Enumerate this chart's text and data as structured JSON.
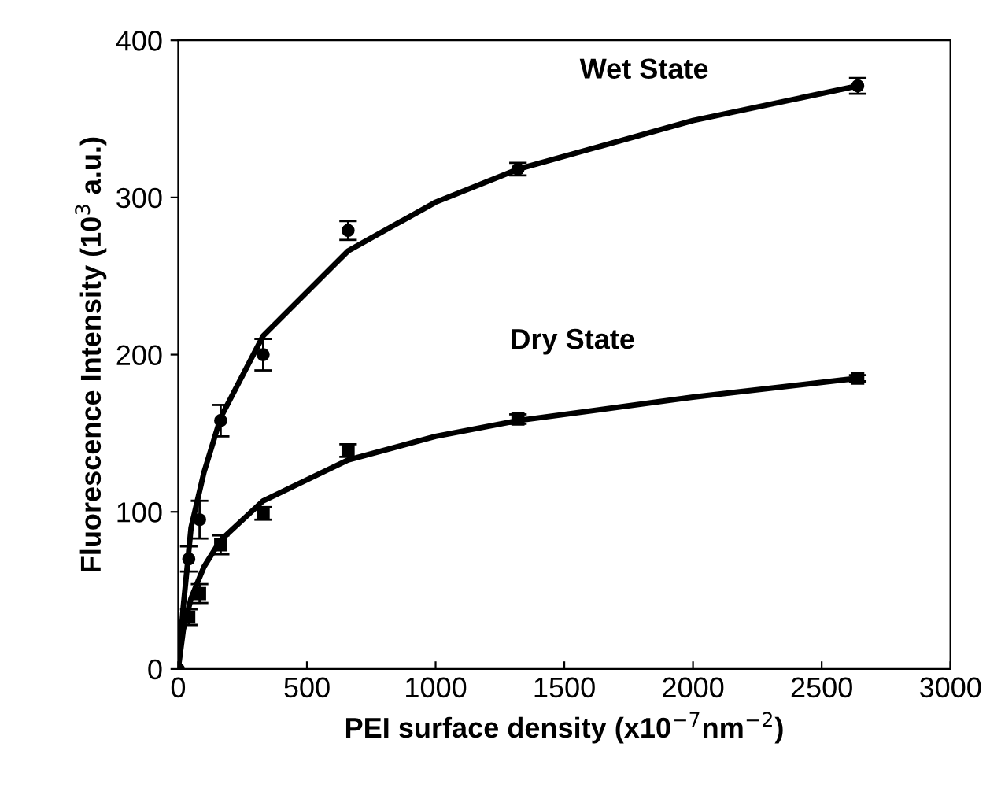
{
  "chart_data": {
    "type": "scatter",
    "xlabel": "PEI surface density (x10$^{−7}$nm$^{−2}$)",
    "ylabel": "Fluorescence Intensity (10$^{3}$ a.u.)",
    "xlim": [
      0,
      3000
    ],
    "ylim": [
      0,
      400
    ],
    "xticks": [
      0,
      500,
      1000,
      1500,
      2000,
      2500,
      3000
    ],
    "yticks": [
      0,
      100,
      200,
      300,
      400
    ],
    "grid": false,
    "series": [
      {
        "marker": "circle",
        "color": "#000000",
        "x": [
          0,
          41,
          83,
          165,
          330,
          660,
          1320,
          2640
        ],
        "values": [
          0,
          70,
          95,
          158,
          200,
          279,
          318,
          371
        ],
        "errors": [
          null,
          8,
          12,
          10,
          10,
          6,
          4,
          5
        ]
      },
      {
        "marker": "square",
        "color": "#000000",
        "x": [
          41,
          83,
          165,
          330,
          660,
          1320,
          2640
        ],
        "values": [
          33,
          48,
          79,
          99,
          139,
          159,
          185
        ],
        "errors": [
          5,
          6,
          6,
          4,
          4,
          3,
          2
        ]
      },
      {
        "type": "line",
        "marker": "none",
        "line_style": "solid",
        "color": "#000000",
        "x": [
          0,
          20,
          50,
          100,
          165,
          330,
          660,
          1000,
          1320,
          2000,
          2640
        ],
        "values": [
          0,
          40,
          90,
          125,
          160,
          212,
          266,
          297,
          318,
          349,
          371
        ]
      },
      {
        "type": "line",
        "marker": "none",
        "line_style": "solid",
        "color": "#000000",
        "x": [
          0,
          20,
          50,
          100,
          165,
          330,
          660,
          1000,
          1320,
          2000,
          2640
        ],
        "values": [
          0,
          25,
          45,
          65,
          82,
          107,
          133,
          148,
          158,
          173,
          185
        ]
      }
    ],
    "annotations": [
      "Wet State",
      "Dry State"
    ]
  }
}
